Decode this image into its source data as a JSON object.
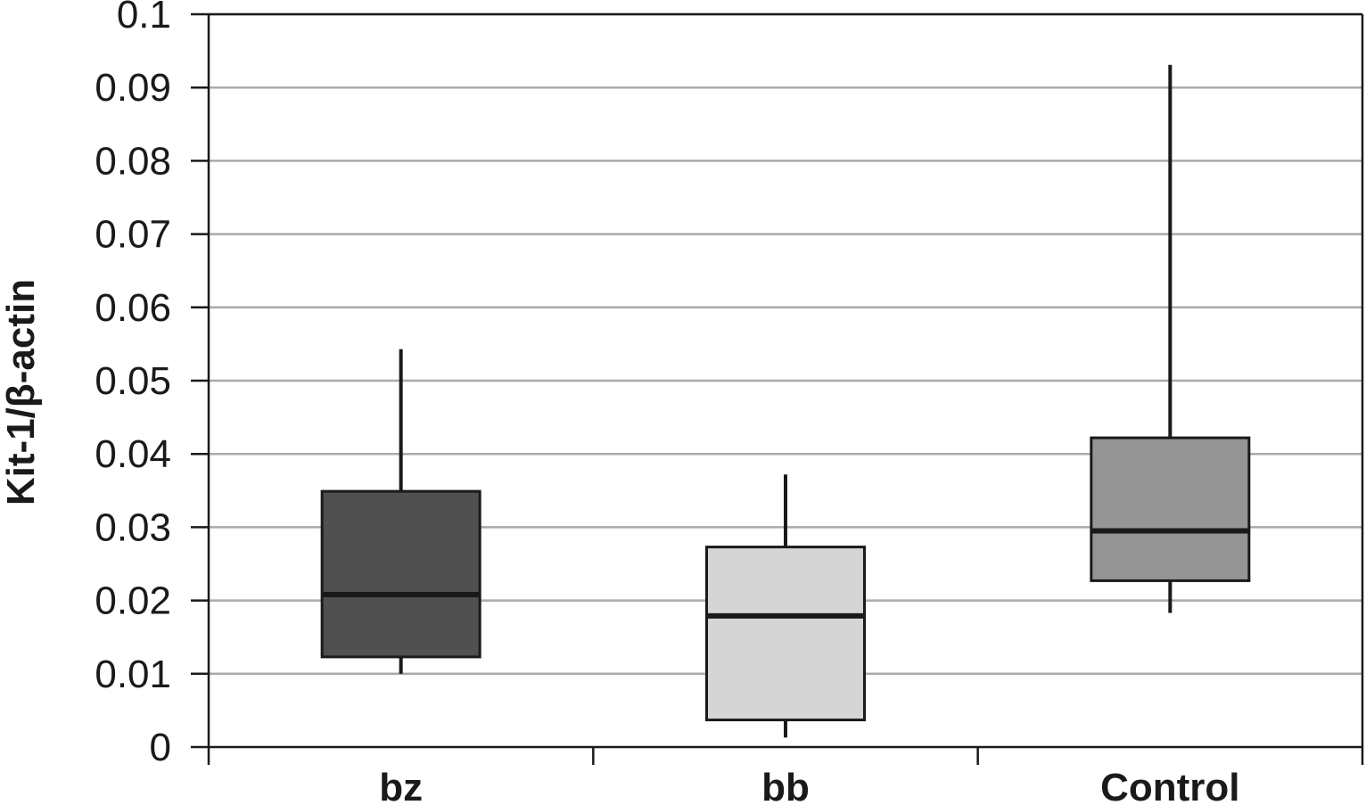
{
  "chart_data": {
    "type": "boxplot",
    "ylabel": "Kit-1/β-actin",
    "ylim": [
      0,
      0.1
    ],
    "yticks": [
      "0",
      "0.01",
      "0.02",
      "0.03",
      "0.04",
      "0.05",
      "0.06",
      "0.07",
      "0.08",
      "0.09",
      "0.1"
    ],
    "grid": true,
    "categories": [
      "bz",
      "bb",
      "Control"
    ],
    "boxes": [
      {
        "category": "bz",
        "whisker_low": 0.01,
        "q1": 0.0123,
        "median": 0.0208,
        "q3": 0.0349,
        "whisker_high": 0.0543,
        "color": "#505050"
      },
      {
        "category": "bb",
        "whisker_low": 0.0013,
        "q1": 0.0037,
        "median": 0.0179,
        "q3": 0.0273,
        "whisker_high": 0.0372,
        "color": "#d5d5d5"
      },
      {
        "category": "Control",
        "whisker_low": 0.0183,
        "q1": 0.0227,
        "median": 0.0295,
        "q3": 0.0422,
        "whisker_high": 0.0931,
        "color": "#959595"
      }
    ]
  }
}
